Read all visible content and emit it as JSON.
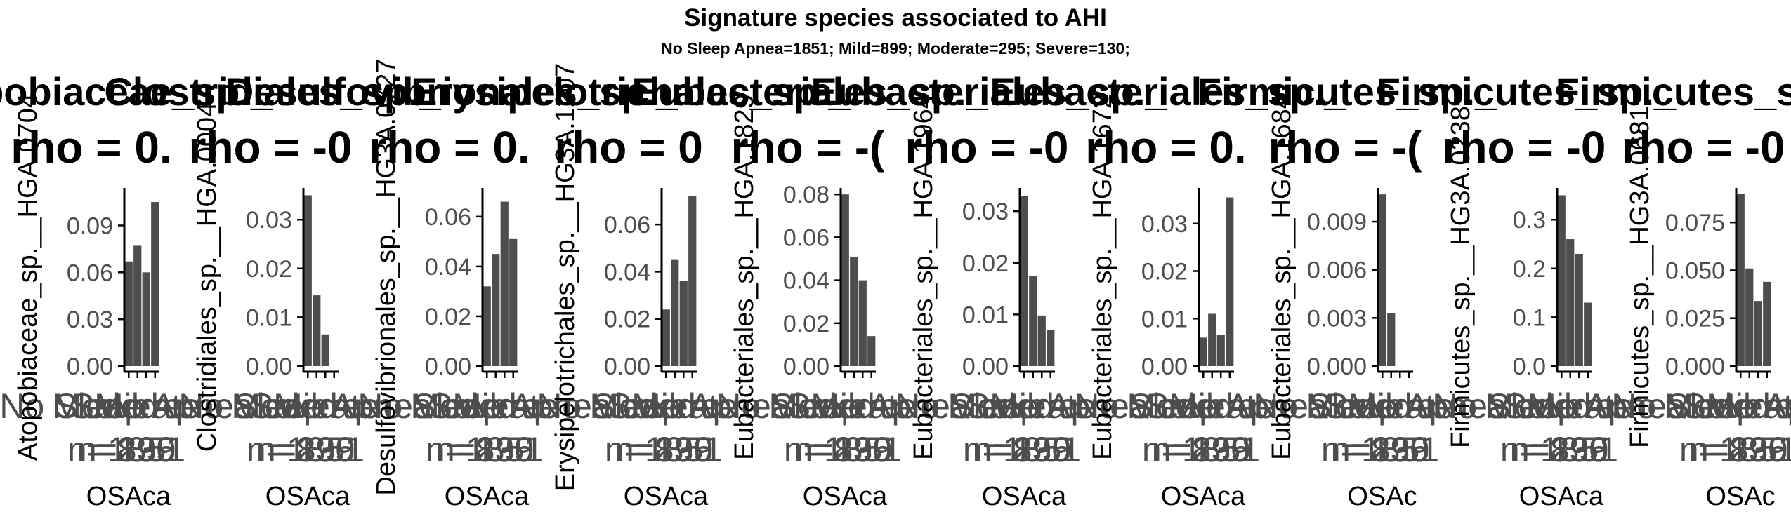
{
  "figure": {
    "title": "Signature species associated to AHI",
    "subtitle": "No Sleep Apnea=1851; Mild=899; Moderate=295; Severe=130;"
  },
  "colors": {
    "bar": "#4d4d4d",
    "axis": "#000000",
    "tick_text": "#4d4d4d",
    "text": "#000000"
  },
  "chart_data": [
    {
      "type": "bar",
      "panel_title": "Atopobiaceae_sp._",
      "stat": "rho = 0.",
      "ylabel": "Atopobiaceae_sp.__HGA.0704",
      "xlabel": "OSAca",
      "categories": [
        "No Sleep Apnea",
        "Mild",
        "Moderate",
        "Severe"
      ],
      "values": [
        0.067,
        0.077,
        0.06,
        0.105
      ],
      "ylim": [
        0,
        0.114
      ],
      "yticks": [
        0.0,
        0.03,
        0.06,
        0.09
      ],
      "ytick_labels": [
        "0.00",
        "0.03",
        "0.06",
        "0.09"
      ],
      "xtick_labels": [
        "No Sleep Apnea",
        "Mild",
        "Moderate",
        "Severe"
      ],
      "xtick_n_labels": [
        "n=1851",
        "n=899",
        "n=295",
        "n=130"
      ]
    },
    {
      "type": "bar",
      "panel_title": "Clostridiales_sp._",
      "stat": "rho = -0",
      "ylabel": "Clostridiales_sp.__HGA.0004",
      "xlabel": "OSAca",
      "categories": [
        "No Sleep Apnea",
        "Mild",
        "Moderate",
        "Severe"
      ],
      "values": [
        0.035,
        0.0145,
        0.0065,
        0.0
      ],
      "ylim": [
        0,
        0.0365
      ],
      "yticks": [
        0.0,
        0.01,
        0.02,
        0.03
      ],
      "ytick_labels": [
        "0.00",
        "0.01",
        "0.02",
        "0.03"
      ],
      "xtick_labels": [
        "No Sleep Apnea",
        "Mild",
        "Moderate",
        "Severe"
      ],
      "xtick_n_labels": [
        "n=1851",
        "n=899",
        "n=295",
        "n=130"
      ]
    },
    {
      "type": "bar",
      "panel_title": "Desulfovibrionales_sp._",
      "stat": "rho = 0.",
      "ylabel": "Desulfovibrionales_sp.__HG3A.0727",
      "xlabel": "OSAca",
      "categories": [
        "No Sleep Apnea",
        "Mild",
        "Moderate",
        "Severe"
      ],
      "values": [
        0.032,
        0.045,
        0.066,
        0.051
      ],
      "ylim": [
        0,
        0.0715
      ],
      "yticks": [
        0.0,
        0.02,
        0.04,
        0.06
      ],
      "ytick_labels": [
        "0.00",
        "0.02",
        "0.04",
        "0.06"
      ],
      "xtick_labels": [
        "No Sleep Apnea",
        "Mild",
        "Moderate",
        "Severe"
      ],
      "xtick_n_labels": [
        "n=1851",
        "n=899",
        "n=295",
        "n=130"
      ]
    },
    {
      "type": "bar",
      "panel_title": "Erysipelotrichales_sp._",
      "stat": "rho = 0",
      "ylabel": "Erysipelotrichales_sp.__HG3A.1207",
      "xlabel": "OSAca",
      "categories": [
        "No Sleep Apnea",
        "Mild",
        "Moderate",
        "Severe"
      ],
      "values": [
        0.024,
        0.045,
        0.036,
        0.072
      ],
      "ylim": [
        0,
        0.0755
      ],
      "yticks": [
        0.0,
        0.02,
        0.04,
        0.06
      ],
      "ytick_labels": [
        "0.00",
        "0.02",
        "0.04",
        "0.06"
      ],
      "xtick_labels": [
        "No Sleep Apnea",
        "Mild",
        "Moderate",
        "Severe"
      ],
      "xtick_n_labels": [
        "n=1851",
        "n=899",
        "n=295",
        "n=130"
      ]
    },
    {
      "type": "bar",
      "panel_title": "Eubacteriales_sp._",
      "stat": "rho = -(",
      "ylabel": "Eubacteriales_sp.__HGA.1829",
      "xlabel": "OSAca",
      "categories": [
        "No Sleep Apnea",
        "Mild",
        "Moderate",
        "Severe"
      ],
      "values": [
        0.08,
        0.051,
        0.04,
        0.014
      ],
      "ylim": [
        0,
        0.083
      ],
      "yticks": [
        0.0,
        0.02,
        0.04,
        0.06,
        0.08
      ],
      "ytick_labels": [
        "0.00",
        "0.02",
        "0.04",
        "0.06",
        "0.08"
      ],
      "xtick_labels": [
        "No Sleep Apnea",
        "Mild",
        "Moderate",
        "Severe"
      ],
      "xtick_n_labels": [
        "n=1851",
        "n=899",
        "n=295",
        "n=130"
      ]
    },
    {
      "type": "bar",
      "panel_title": "Eubacteriales_sp._",
      "stat": "rho = -0",
      "ylabel": "Eubacteriales_sp.__HGA.1964",
      "xlabel": "OSAca",
      "categories": [
        "No Sleep Apnea",
        "Mild",
        "Moderate",
        "Severe"
      ],
      "values": [
        0.033,
        0.0175,
        0.0098,
        0.007
      ],
      "ylim": [
        0,
        0.0345
      ],
      "yticks": [
        0.0,
        0.01,
        0.02,
        0.03
      ],
      "ytick_labels": [
        "0.00",
        "0.01",
        "0.02",
        "0.03"
      ],
      "xtick_labels": [
        "No Sleep Apnea",
        "Mild",
        "Moderate",
        "Severe"
      ],
      "xtick_n_labels": [
        "n=1851",
        "n=899",
        "n=295",
        "n=130"
      ]
    },
    {
      "type": "bar",
      "panel_title": "Eubacteriales_sp._",
      "stat": "rho = 0.",
      "ylabel": "Eubacteriales_sp.__HGA.1672",
      "xlabel": "OSAca",
      "categories": [
        "No Sleep Apnea",
        "Mild",
        "Moderate",
        "Severe"
      ],
      "values": [
        0.006,
        0.011,
        0.0065,
        0.0355
      ],
      "ylim": [
        0,
        0.0375
      ],
      "yticks": [
        0.0,
        0.01,
        0.02,
        0.03
      ],
      "ytick_labels": [
        "0.00",
        "0.01",
        "0.02",
        "0.03"
      ],
      "xtick_labels": [
        "No Sleep Apnea",
        "Mild",
        "Moderate",
        "Severe"
      ],
      "xtick_n_labels": [
        "n=1851",
        "n=899",
        "n=295",
        "n=130"
      ]
    },
    {
      "type": "bar",
      "panel_title": "Firmicutes_sp._",
      "stat": "rho = -(",
      "ylabel": "Eubacteriales_sp.__HGA.1684",
      "xlabel": "OSAc",
      "categories": [
        "No Sleep Apnea",
        "Mild",
        "Moderate",
        "Severe"
      ],
      "values": [
        0.0107,
        0.0033,
        0.0,
        0.0
      ],
      "ylim": [
        0,
        0.0111
      ],
      "yticks": [
        0.0,
        0.003,
        0.006,
        0.009
      ],
      "ytick_labels": [
        "0.000",
        "0.003",
        "0.006",
        "0.009"
      ],
      "xtick_labels": [
        "No Sleep Apnea",
        "Mild",
        "Moderate",
        "Severe"
      ],
      "xtick_n_labels": [
        "n=1851",
        "n=899",
        "n=295",
        "n=130"
      ]
    },
    {
      "type": "bar",
      "panel_title": "Firmicutes_sp._",
      "stat": "rho = -0",
      "ylabel": "Firmicutes_sp.__HG3A.0238",
      "xlabel": "OSAca",
      "categories": [
        "No Sleep Apnea",
        "Mild",
        "Moderate",
        "Severe"
      ],
      "values": [
        0.35,
        0.26,
        0.23,
        0.13
      ],
      "ylim": [
        0,
        0.365
      ],
      "yticks": [
        0.0,
        0.1,
        0.2,
        0.3
      ],
      "ytick_labels": [
        "0.0",
        "0.1",
        "0.2",
        "0.3"
      ],
      "xtick_labels": [
        "No Sleep Apnea",
        "Mild",
        "Moderate",
        "Severe"
      ],
      "xtick_n_labels": [
        "n=1851",
        "n=899",
        "n=295",
        "n=130"
      ]
    },
    {
      "type": "bar",
      "panel_title": "Firmicutes_sp._",
      "stat": "rho = -0",
      "ylabel": "Firmicutes_sp.__HG3A.0681",
      "xlabel": "OSAc",
      "categories": [
        "No Sleep Apnea",
        "Mild",
        "Moderate",
        "Severe"
      ],
      "values": [
        0.09,
        0.051,
        0.034,
        0.044
      ],
      "ylim": [
        0,
        0.093
      ],
      "yticks": [
        0.0,
        0.025,
        0.05,
        0.075
      ],
      "ytick_labels": [
        "0.000",
        "0.025",
        "0.050",
        "0.075"
      ],
      "xtick_labels": [
        "No Sleep Apnea",
        "Mild",
        "Moderate",
        "Severe"
      ],
      "xtick_n_labels": [
        "n=1851",
        "n=899",
        "n=295",
        "n=130"
      ]
    }
  ]
}
